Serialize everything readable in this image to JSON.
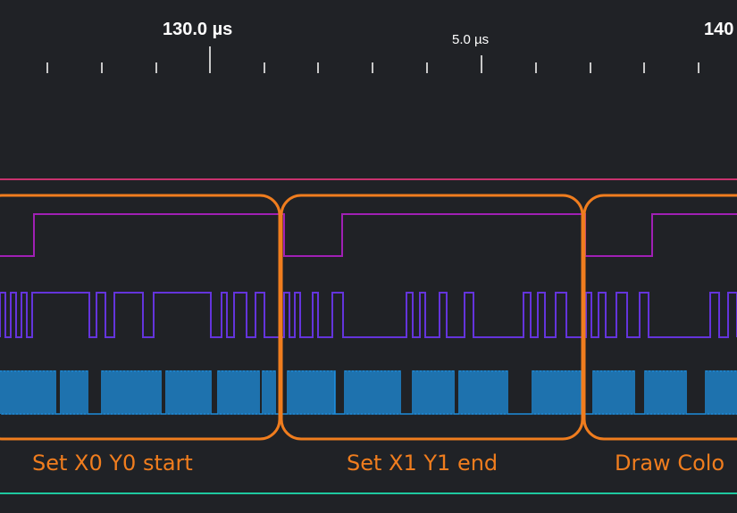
{
  "timeline": {
    "labels": [
      "130.0 µs",
      "5.0 µs",
      "140"
    ]
  },
  "segments": [
    {
      "label": "Set X0 Y0 start"
    },
    {
      "label": "Set X1 Y1 end"
    },
    {
      "label": "Draw Colo"
    }
  ],
  "colors": {
    "background": "#202226",
    "ruler_text": "#ffffff",
    "segment_outline": "#f07d1e",
    "top_line": "#c8326e",
    "channel_1": "#a020b4",
    "channel_2": "#6434dc",
    "channel_3": "#1e8cdc",
    "bottom_line": "#1ec8a0"
  }
}
